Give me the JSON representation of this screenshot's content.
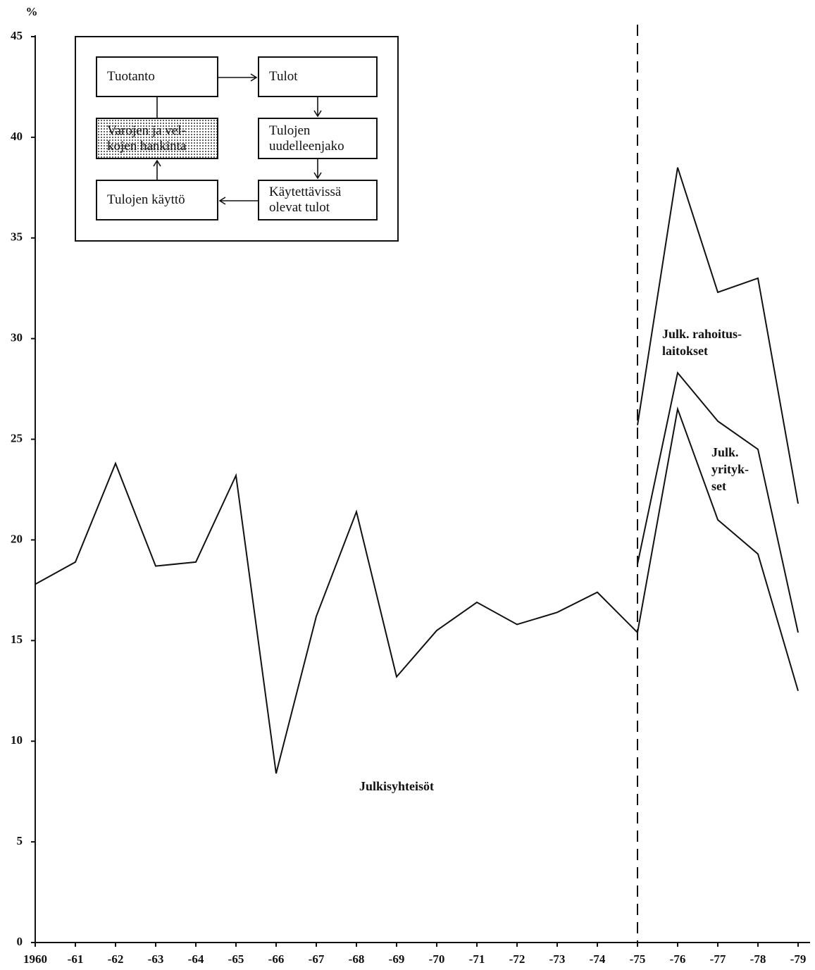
{
  "chart_data": {
    "type": "line",
    "y_label": "%",
    "categories": [
      "1960",
      "-61",
      "-62",
      "-63",
      "-64",
      "-65",
      "-66",
      "-67",
      "-68",
      "-69",
      "-70",
      "-71",
      "-72",
      "-73",
      "-74",
      "-75",
      "-76",
      "-77",
      "-78",
      "-79"
    ],
    "series": [
      {
        "name": "Julkisyhteisöt",
        "color": "#111111",
        "values": [
          17.8,
          18.9,
          23.8,
          18.7,
          18.9,
          23.2,
          8.4,
          16.2,
          21.4,
          13.2,
          15.5,
          16.9,
          15.8,
          16.4,
          17.4,
          15.4,
          26.5,
          21.0,
          19.3,
          12.5
        ]
      },
      {
        "name": "Julk.\nyrityk-\nset",
        "color": "#111111",
        "values": [
          null,
          null,
          null,
          null,
          null,
          null,
          null,
          null,
          null,
          null,
          null,
          null,
          null,
          null,
          null,
          18.8,
          28.3,
          25.9,
          24.5,
          15.4
        ]
      },
      {
        "name": "Julk. rahoitus-\nlaitokset",
        "color": "#111111",
        "values": [
          null,
          null,
          null,
          null,
          null,
          null,
          null,
          null,
          null,
          null,
          null,
          null,
          null,
          null,
          null,
          25.7,
          38.5,
          32.3,
          33.0,
          21.8
        ]
      }
    ],
    "ylim": [
      0,
      45
    ],
    "yticks": [
      0,
      5,
      10,
      15,
      20,
      25,
      30,
      35,
      40,
      45
    ]
  },
  "diagram": {
    "boxes": [
      "Tuotanto",
      "Tulot",
      "Varojen ja vel-\nkojen hankinta",
      "Tulojen\nuudelleenjako",
      "Tulojen käyttö",
      "Käytettävissä\nolevat tulot"
    ]
  }
}
